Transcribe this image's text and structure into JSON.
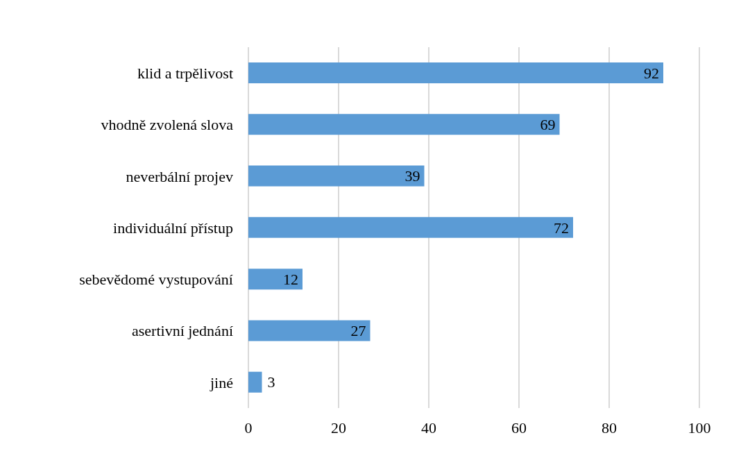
{
  "chart_data": {
    "type": "bar",
    "orientation": "horizontal",
    "categories": [
      "klid a trpělivost",
      "vhodně zvolená slova",
      "neverbální projev",
      "individuální přístup",
      "sebevědomé vystupování",
      "asertivní jednání",
      "jiné"
    ],
    "values": [
      92,
      69,
      39,
      72,
      12,
      27,
      3
    ],
    "color": "#5b9bd5",
    "xlim": [
      0,
      100
    ],
    "xticks": [
      0,
      20,
      40,
      60,
      80,
      100
    ],
    "grid": "x",
    "data_labels": true
  }
}
